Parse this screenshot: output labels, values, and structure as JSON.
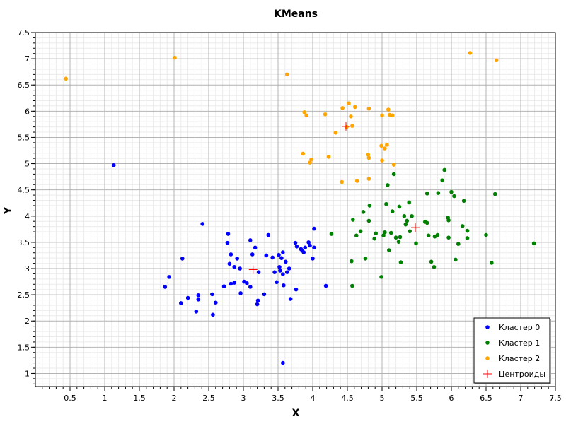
{
  "chart_data": {
    "type": "scatter",
    "title": "KMeans",
    "xlabel": "X",
    "ylabel": "Y",
    "xlim": [
      0.0,
      7.5
    ],
    "ylim": [
      0.75,
      7.5
    ],
    "xticks": [
      "0.5",
      "1",
      "1.5",
      "2",
      "2.5",
      "3",
      "3.5",
      "4",
      "4.5",
      "5",
      "5.5",
      "6",
      "6.5",
      "7",
      "7.5"
    ],
    "yticks": [
      "1",
      "1.5",
      "2",
      "2.5",
      "3",
      "3.5",
      "4",
      "4.5",
      "5",
      "5.5",
      "6",
      "6.5",
      "7",
      "7.5"
    ],
    "grid": true,
    "legend_position": "bottom-right",
    "series": [
      {
        "name": "Кластер 0",
        "color": "#0000ff",
        "marker": "circle",
        "points": [
          [
            1.13,
            4.97
          ],
          [
            2.41,
            3.85
          ],
          [
            2.12,
            3.19
          ],
          [
            1.93,
            2.84
          ],
          [
            1.87,
            2.65
          ],
          [
            2.1,
            2.34
          ],
          [
            2.2,
            2.44
          ],
          [
            2.32,
            2.18
          ],
          [
            2.35,
            2.49
          ],
          [
            2.35,
            2.41
          ],
          [
            2.55,
            2.51
          ],
          [
            2.56,
            2.12
          ],
          [
            2.6,
            2.35
          ],
          [
            2.72,
            2.66
          ],
          [
            2.77,
            3.49
          ],
          [
            2.78,
            3.66
          ],
          [
            2.8,
            3.09
          ],
          [
            2.82,
            3.27
          ],
          [
            2.82,
            2.71
          ],
          [
            2.87,
            2.73
          ],
          [
            2.87,
            3.03
          ],
          [
            2.91,
            3.19
          ],
          [
            2.95,
            3.0
          ],
          [
            2.96,
            2.53
          ],
          [
            3.01,
            2.75
          ],
          [
            3.05,
            2.72
          ],
          [
            3.1,
            2.65
          ],
          [
            3.1,
            3.54
          ],
          [
            3.13,
            3.27
          ],
          [
            3.17,
            3.4
          ],
          [
            3.2,
            2.32
          ],
          [
            3.21,
            2.39
          ],
          [
            3.22,
            2.93
          ],
          [
            3.3,
            2.51
          ],
          [
            3.33,
            3.25
          ],
          [
            3.36,
            3.64
          ],
          [
            3.42,
            3.21
          ],
          [
            3.45,
            2.93
          ],
          [
            3.48,
            2.74
          ],
          [
            3.51,
            3.26
          ],
          [
            3.52,
            3.03
          ],
          [
            3.53,
            2.96
          ],
          [
            3.55,
            3.2
          ],
          [
            3.57,
            3.31
          ],
          [
            3.57,
            2.89
          ],
          [
            3.58,
            2.68
          ],
          [
            3.61,
            3.13
          ],
          [
            3.63,
            2.93
          ],
          [
            3.66,
            3.0
          ],
          [
            3.68,
            2.42
          ],
          [
            3.75,
            3.49
          ],
          [
            3.76,
            2.6
          ],
          [
            3.77,
            3.42
          ],
          [
            3.83,
            3.37
          ],
          [
            3.85,
            3.34
          ],
          [
            3.87,
            3.31
          ],
          [
            3.89,
            3.4
          ],
          [
            3.94,
            3.5
          ],
          [
            3.96,
            3.44
          ],
          [
            4.0,
            3.19
          ],
          [
            4.02,
            3.76
          ],
          [
            4.02,
            3.4
          ],
          [
            4.19,
            2.67
          ],
          [
            3.57,
            1.2
          ]
        ]
      },
      {
        "name": "Кластер 1",
        "color": "#008000",
        "marker": "circle",
        "points": [
          [
            4.27,
            3.66
          ],
          [
            4.56,
            3.14
          ],
          [
            4.57,
            2.67
          ],
          [
            4.58,
            3.93
          ],
          [
            4.63,
            3.63
          ],
          [
            4.69,
            3.71
          ],
          [
            4.73,
            4.08
          ],
          [
            4.76,
            3.19
          ],
          [
            4.81,
            3.91
          ],
          [
            4.82,
            4.2
          ],
          [
            4.89,
            3.57
          ],
          [
            4.91,
            3.67
          ],
          [
            4.99,
            2.84
          ],
          [
            5.02,
            3.63
          ],
          [
            5.04,
            3.69
          ],
          [
            5.06,
            4.23
          ],
          [
            5.08,
            4.59
          ],
          [
            5.1,
            3.35
          ],
          [
            5.13,
            3.68
          ],
          [
            5.15,
            4.09
          ],
          [
            5.17,
            4.8
          ],
          [
            5.2,
            3.59
          ],
          [
            5.24,
            3.51
          ],
          [
            5.25,
            4.18
          ],
          [
            5.26,
            3.6
          ],
          [
            5.27,
            3.12
          ],
          [
            5.32,
            4.0
          ],
          [
            5.34,
            3.84
          ],
          [
            5.36,
            3.91
          ],
          [
            5.39,
            4.26
          ],
          [
            5.4,
            3.71
          ],
          [
            5.43,
            4.0
          ],
          [
            5.49,
            3.48
          ],
          [
            5.62,
            3.89
          ],
          [
            5.65,
            4.43
          ],
          [
            5.65,
            3.87
          ],
          [
            5.67,
            3.63
          ],
          [
            5.71,
            3.13
          ],
          [
            5.75,
            3.03
          ],
          [
            5.76,
            3.61
          ],
          [
            5.8,
            3.64
          ],
          [
            5.81,
            4.44
          ],
          [
            5.87,
            4.68
          ],
          [
            5.9,
            4.88
          ],
          [
            5.95,
            3.97
          ],
          [
            5.96,
            3.92
          ],
          [
            5.96,
            3.59
          ],
          [
            6.0,
            4.46
          ],
          [
            6.04,
            4.38
          ],
          [
            6.06,
            3.17
          ],
          [
            6.1,
            3.47
          ],
          [
            6.16,
            3.81
          ],
          [
            6.18,
            4.29
          ],
          [
            6.23,
            3.72
          ],
          [
            6.23,
            3.58
          ],
          [
            6.5,
            3.64
          ],
          [
            6.58,
            3.11
          ],
          [
            6.63,
            4.42
          ],
          [
            7.19,
            3.48
          ]
        ]
      },
      {
        "name": "Кластер 2",
        "color": "#ffa500",
        "marker": "circle",
        "points": [
          [
            0.44,
            6.62
          ],
          [
            2.01,
            7.02
          ],
          [
            3.63,
            6.7
          ],
          [
            6.27,
            7.11
          ],
          [
            6.65,
            6.97
          ],
          [
            3.88,
            5.98
          ],
          [
            3.91,
            5.92
          ],
          [
            3.86,
            5.19
          ],
          [
            3.96,
            5.02
          ],
          [
            3.98,
            5.08
          ],
          [
            4.18,
            5.94
          ],
          [
            4.23,
            5.13
          ],
          [
            4.33,
            5.59
          ],
          [
            4.42,
            4.65
          ],
          [
            4.43,
            6.06
          ],
          [
            4.49,
            5.7
          ],
          [
            4.52,
            6.15
          ],
          [
            4.55,
            5.9
          ],
          [
            4.57,
            5.72
          ],
          [
            4.61,
            6.08
          ],
          [
            4.64,
            4.67
          ],
          [
            4.8,
            5.17
          ],
          [
            4.81,
            5.11
          ],
          [
            4.81,
            6.05
          ],
          [
            4.81,
            4.71
          ],
          [
            4.99,
            5.34
          ],
          [
            5.0,
            5.92
          ],
          [
            5.0,
            5.06
          ],
          [
            5.04,
            5.29
          ],
          [
            5.07,
            5.36
          ],
          [
            5.09,
            6.03
          ],
          [
            5.11,
            5.93
          ],
          [
            5.15,
            5.92
          ],
          [
            5.17,
            4.98
          ]
        ]
      }
    ],
    "centroids": {
      "name": "Центроиды",
      "color": "#ff0000",
      "marker": "plus",
      "points": [
        [
          3.14,
          2.98
        ],
        [
          5.48,
          3.78
        ],
        [
          4.48,
          5.71
        ]
      ]
    }
  }
}
